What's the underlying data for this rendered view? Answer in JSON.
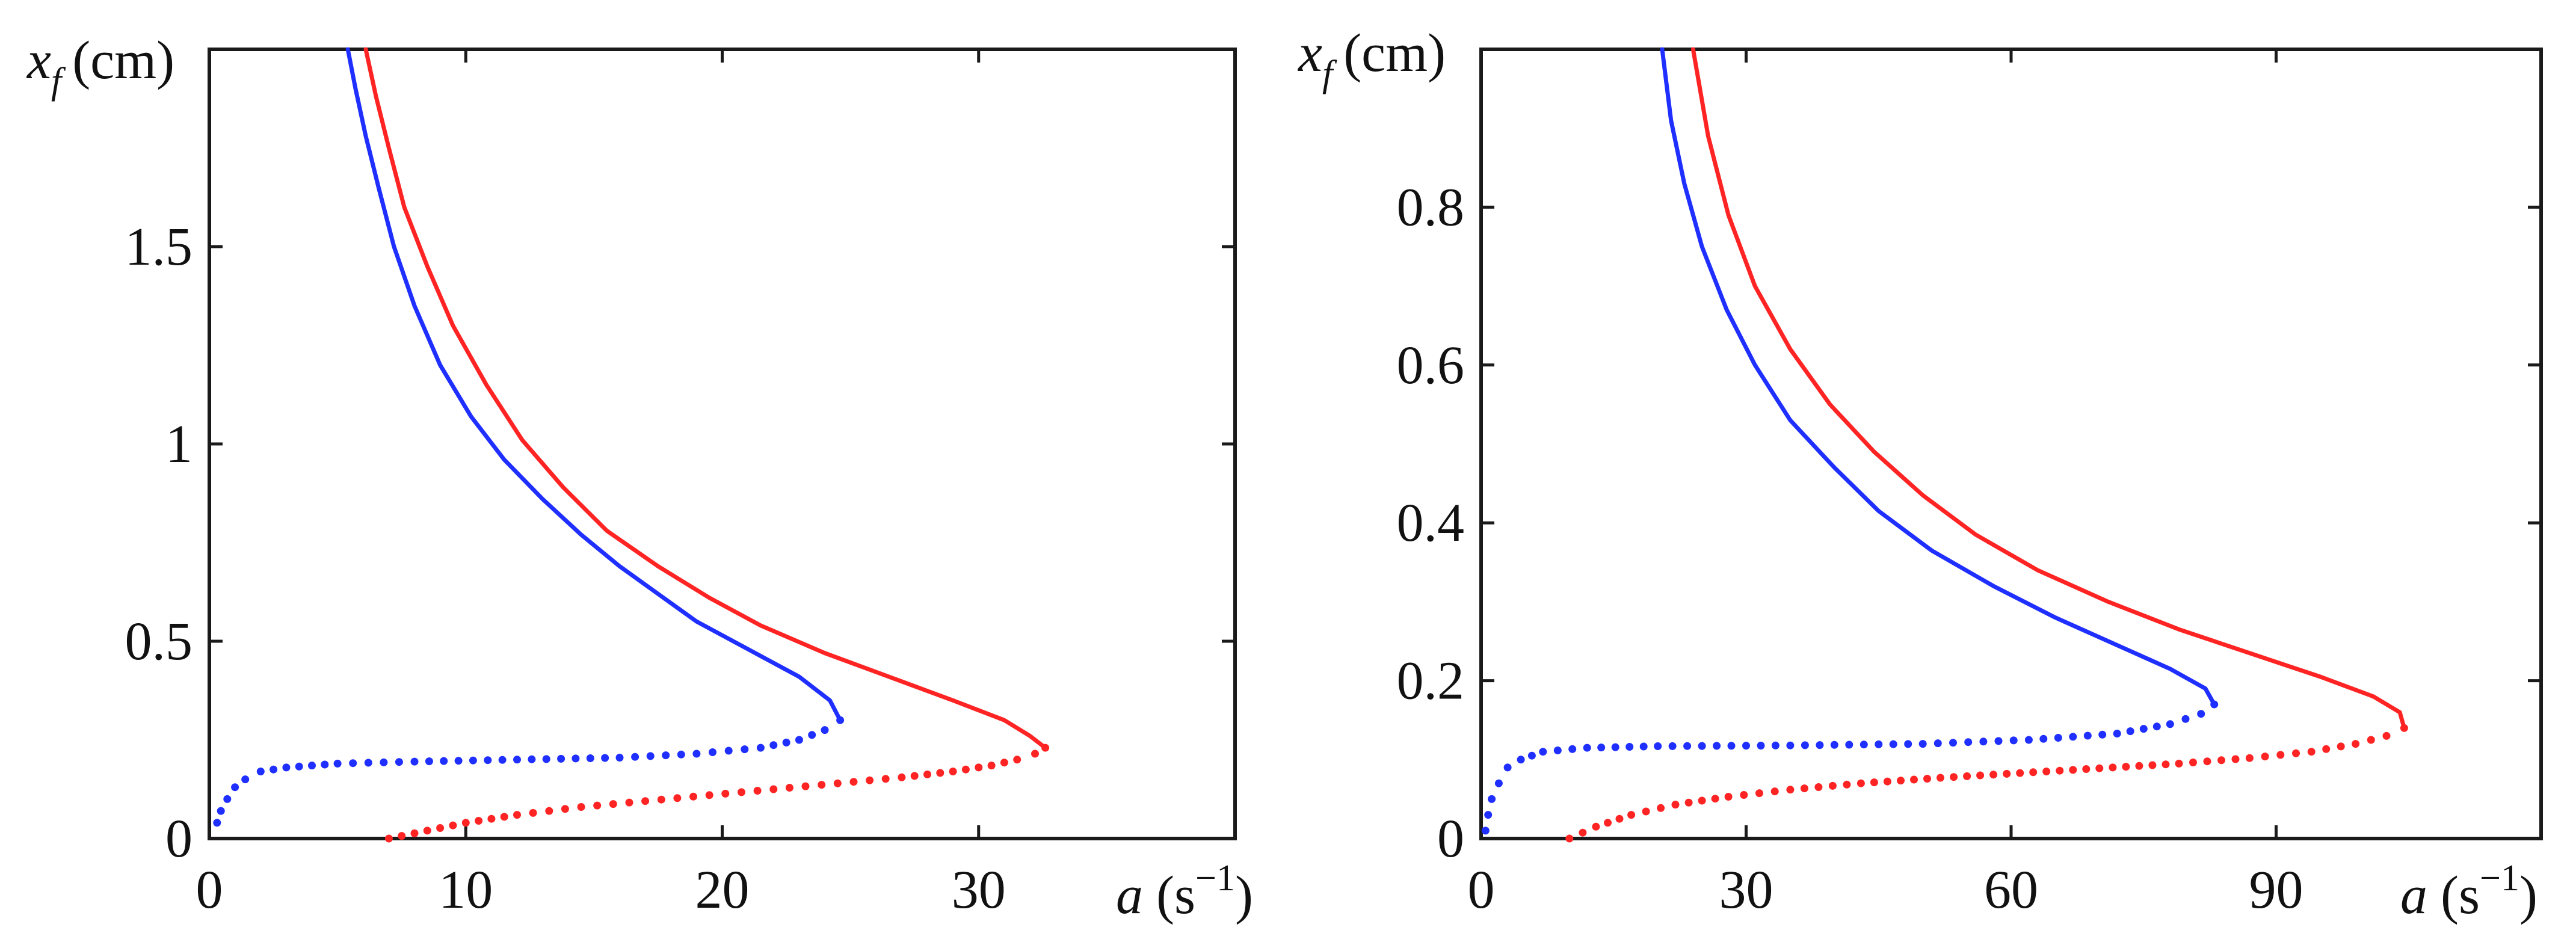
{
  "colors": {
    "blue": "#1f2fff",
    "red": "#ff2424",
    "axis": "#1a1a1a"
  },
  "chart_data": [
    {
      "type": "line",
      "title": "",
      "xlabel": "a (s⁻¹)",
      "xlabel_var": "a",
      "xlabel_unit": "(s",
      "xlabel_exp": "−1",
      "xlabel_close": ")",
      "ylabel": "x_f (cm)",
      "ylabel_var": "x",
      "ylabel_sub": "f",
      "ylabel_unit": "(cm)",
      "xlim": [
        0,
        40
      ],
      "ylim": [
        0,
        2
      ],
      "xticks": [
        0,
        10,
        20,
        30
      ],
      "xtick_labels": [
        "0",
        "10",
        "20",
        "30"
      ],
      "yticks": [
        0,
        0.5,
        1,
        1.5
      ],
      "ytick_labels": [
        "0",
        "0.5",
        "1",
        "1.5"
      ],
      "series": [
        {
          "name": "blue solid",
          "color": "#1f2fff",
          "style": "solid",
          "x": [
            24.6,
            24.2,
            23.0,
            21.0,
            19.0,
            17.5,
            16.0,
            14.5,
            13.0,
            11.5,
            10.2,
            9.0,
            8.0,
            7.2,
            6.6,
            6.1,
            5.7,
            5.4
          ],
          "y": [
            0.3,
            0.35,
            0.41,
            0.48,
            0.55,
            0.62,
            0.69,
            0.77,
            0.86,
            0.96,
            1.07,
            1.2,
            1.35,
            1.5,
            1.65,
            1.78,
            1.9,
            2.0
          ]
        },
        {
          "name": "red solid",
          "color": "#ff2424",
          "style": "solid",
          "x": [
            32.6,
            32.0,
            31.0,
            29.0,
            26.5,
            24.0,
            21.5,
            19.5,
            17.5,
            15.5,
            13.8,
            12.2,
            10.8,
            9.5,
            8.5,
            7.6,
            7.0,
            6.5,
            6.1
          ],
          "y": [
            0.23,
            0.26,
            0.3,
            0.35,
            0.41,
            0.47,
            0.54,
            0.61,
            0.69,
            0.78,
            0.89,
            1.01,
            1.15,
            1.3,
            1.45,
            1.6,
            1.75,
            1.88,
            2.0
          ]
        },
        {
          "name": "blue dotted",
          "color": "#1f2fff",
          "style": "dotted",
          "x": [
            0.3,
            0.45,
            0.7,
            1.0,
            1.4,
            2.0,
            3.0,
            5.0,
            8.0,
            12.0,
            16.0,
            19.0,
            21.5,
            23.0,
            24.0,
            24.6
          ],
          "y": [
            0.04,
            0.07,
            0.1,
            0.13,
            0.15,
            0.17,
            0.18,
            0.19,
            0.195,
            0.2,
            0.205,
            0.215,
            0.23,
            0.25,
            0.275,
            0.3
          ]
        },
        {
          "name": "red dotted",
          "color": "#ff2424",
          "style": "dotted",
          "x": [
            7.0,
            8.5,
            10.0,
            12.0,
            14.5,
            17.0,
            19.5,
            22.0,
            24.5,
            27.0,
            29.0,
            30.5,
            31.5,
            32.2,
            32.6
          ],
          "y": [
            0.0,
            0.02,
            0.04,
            0.06,
            0.08,
            0.095,
            0.11,
            0.125,
            0.14,
            0.155,
            0.17,
            0.185,
            0.2,
            0.215,
            0.23
          ]
        }
      ]
    },
    {
      "type": "line",
      "title": "",
      "xlabel": "a (s⁻¹)",
      "xlabel_var": "a",
      "xlabel_unit": "(s",
      "xlabel_exp": "−1",
      "xlabel_close": ")",
      "ylabel": "x_f (cm)",
      "ylabel_var": "x",
      "ylabel_sub": "f",
      "ylabel_unit": "(cm)",
      "xlim": [
        0,
        120
      ],
      "ylim": [
        0,
        1
      ],
      "xticks": [
        0,
        30,
        60,
        90
      ],
      "xtick_labels": [
        "0",
        "30",
        "60",
        "90"
      ],
      "yticks": [
        0,
        0.2,
        0.4,
        0.6,
        0.8
      ],
      "ytick_labels": [
        "0",
        "0.2",
        "0.4",
        "0.6",
        "0.8"
      ],
      "series": [
        {
          "name": "blue solid",
          "color": "#1f2fff",
          "style": "solid",
          "x": [
            83.0,
            82.0,
            78.0,
            72.0,
            65.0,
            58.0,
            51.0,
            45.0,
            40.0,
            35.0,
            31.0,
            27.8,
            25.0,
            23.0,
            21.5,
            20.5
          ],
          "y": [
            0.17,
            0.19,
            0.215,
            0.245,
            0.28,
            0.32,
            0.365,
            0.415,
            0.47,
            0.53,
            0.6,
            0.67,
            0.75,
            0.83,
            0.91,
            1.0
          ]
        },
        {
          "name": "red solid",
          "color": "#ff2424",
          "style": "solid",
          "x": [
            104.5,
            104.0,
            101.0,
            95.0,
            87.0,
            79.0,
            71.0,
            63.0,
            56.0,
            50.0,
            44.5,
            39.5,
            35.0,
            31.0,
            28.0,
            25.7,
            24.0
          ],
          "y": [
            0.14,
            0.16,
            0.18,
            0.205,
            0.235,
            0.265,
            0.3,
            0.34,
            0.385,
            0.435,
            0.49,
            0.55,
            0.62,
            0.7,
            0.79,
            0.89,
            1.0
          ]
        },
        {
          "name": "blue dotted",
          "color": "#1f2fff",
          "style": "dotted",
          "x": [
            0.5,
            0.8,
            1.2,
            2.0,
            3.0,
            4.5,
            7.0,
            12.0,
            20.0,
            35.0,
            50.0,
            62.0,
            72.0,
            78.0,
            81.5,
            83.0
          ],
          "y": [
            0.01,
            0.03,
            0.05,
            0.07,
            0.09,
            0.1,
            0.11,
            0.115,
            0.117,
            0.118,
            0.12,
            0.125,
            0.133,
            0.145,
            0.158,
            0.17
          ]
        },
        {
          "name": "red dotted",
          "color": "#ff2424",
          "style": "dotted",
          "x": [
            10.0,
            13.0,
            17.0,
            22.0,
            28.0,
            35.0,
            43.0,
            52.0,
            61.0,
            70.0,
            79.0,
            87.0,
            94.0,
            99.0,
            102.5,
            104.5
          ],
          "y": [
            0.0,
            0.015,
            0.03,
            0.043,
            0.053,
            0.062,
            0.07,
            0.077,
            0.083,
            0.089,
            0.095,
            0.102,
            0.11,
            0.12,
            0.13,
            0.14
          ]
        }
      ]
    }
  ]
}
